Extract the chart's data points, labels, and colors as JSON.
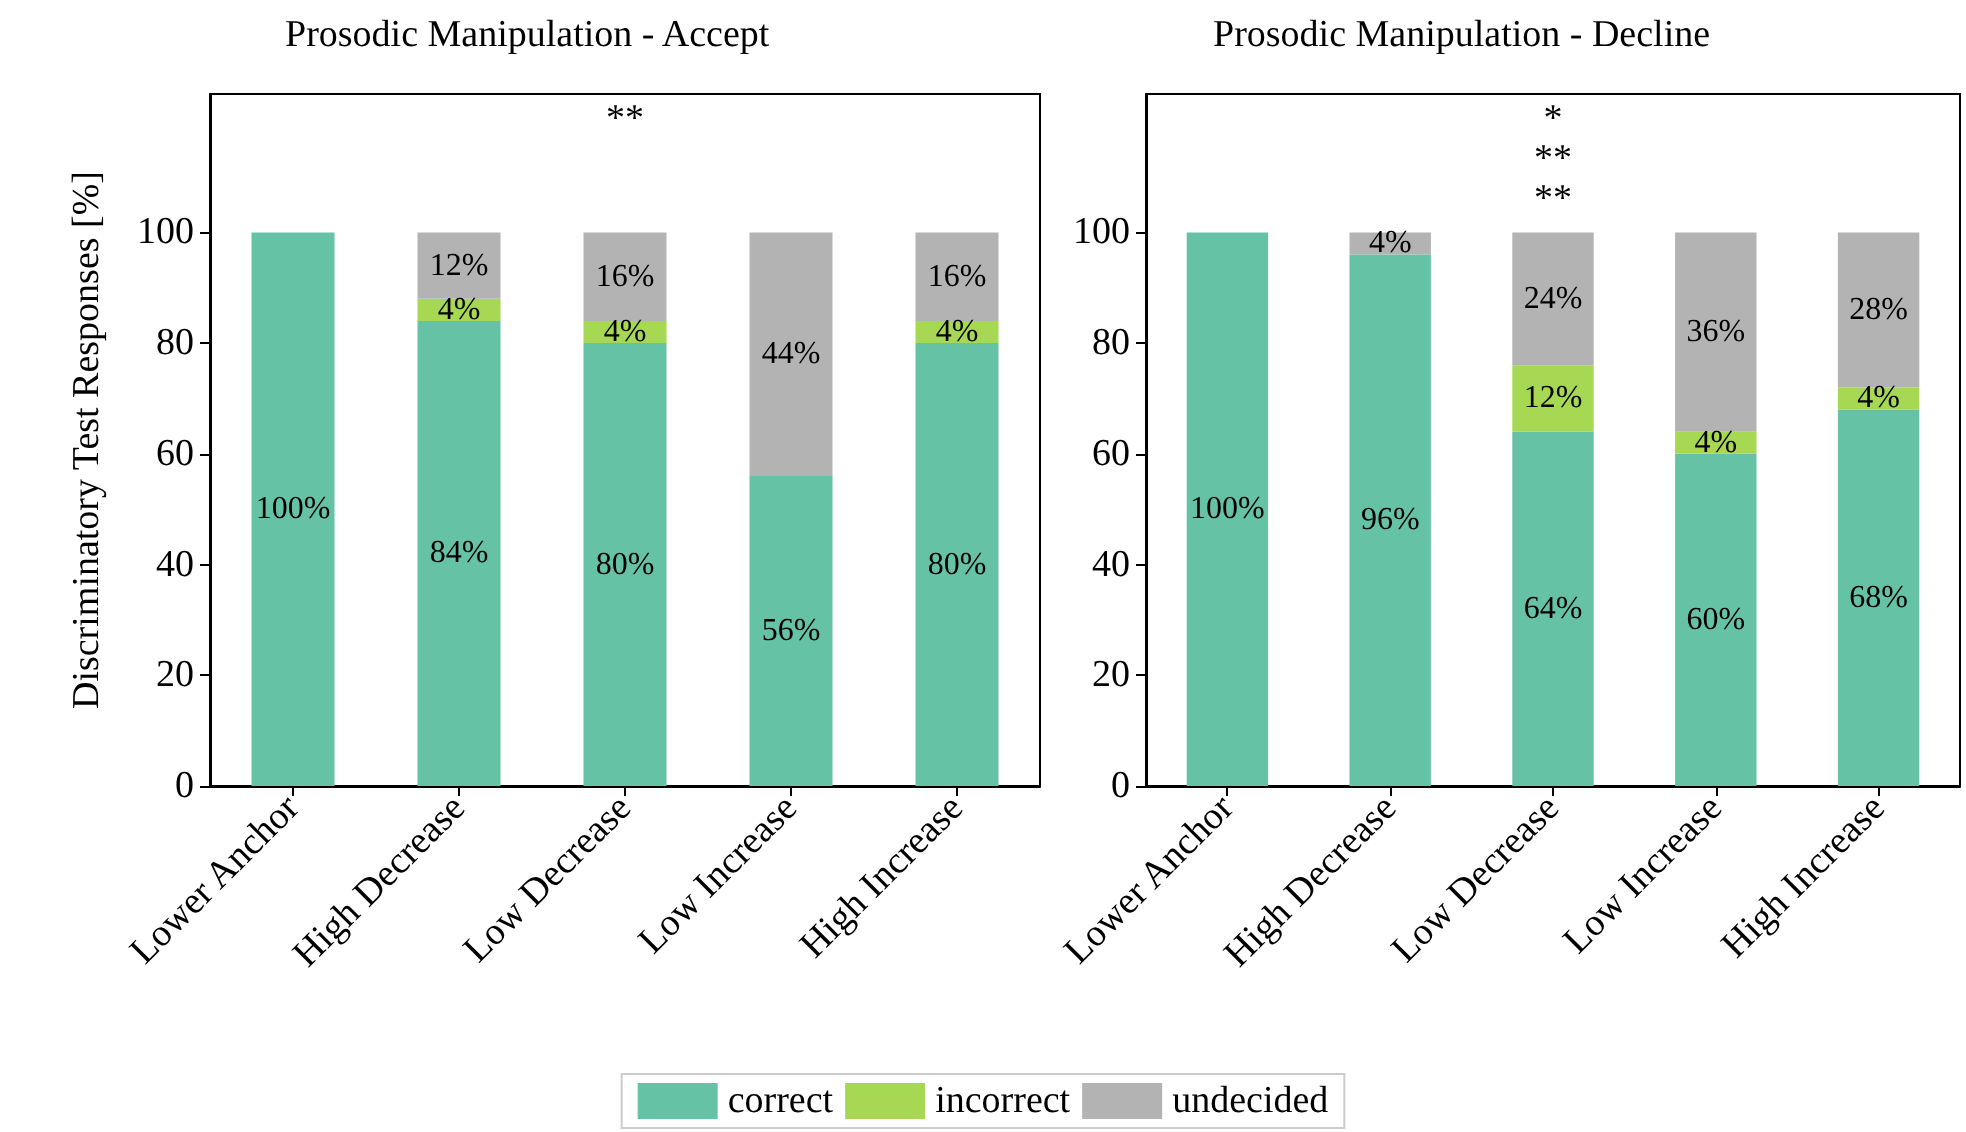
{
  "chart_data": [
    {
      "type": "bar",
      "title": "Prosodic Manipulation - Accept",
      "ylabel": "Discriminatory Test Responses [%]",
      "stacked": true,
      "categories": [
        "Lower Anchor",
        "High Decrease",
        "Low Decrease",
        "Low Increase",
        "High Increase"
      ],
      "series": [
        {
          "color": "#66c2a5",
          "values": [
            100,
            84,
            80,
            56,
            80
          ],
          "value_labels": [
            "100%",
            "84%",
            "80%",
            "56%",
            "80%"
          ]
        },
        {
          "color": "#a6d854",
          "values": [
            0,
            4,
            4,
            0,
            4
          ],
          "value_labels": [
            null,
            "4%",
            "4%",
            null,
            "4%"
          ]
        },
        {
          "color": "#b3b3b3",
          "values": [
            0,
            12,
            16,
            44,
            16
          ],
          "value_labels": [
            null,
            "12%",
            "16%",
            "44%",
            "16%"
          ]
        }
      ],
      "ylim": [
        0,
        125
      ],
      "yticks": [
        0,
        20,
        40,
        60,
        80,
        100
      ],
      "grid": false,
      "legend": false,
      "annotations": [
        "**"
      ]
    },
    {
      "type": "bar",
      "title": "Prosodic Manipulation - Decline",
      "stacked": true,
      "categories": [
        "Lower Anchor",
        "High Decrease",
        "Low Decrease",
        "Low Increase",
        "High Increase"
      ],
      "series": [
        {
          "name": "correct",
          "color": "#66c2a5",
          "values": [
            100,
            96,
            64,
            60,
            68
          ],
          "value_labels": [
            "100%",
            "96%",
            "64%",
            "60%",
            "68%"
          ]
        },
        {
          "name": "incorrect",
          "color": "#a6d854",
          "values": [
            0,
            0,
            12,
            4,
            4
          ],
          "value_labels": [
            null,
            null,
            "12%",
            "4%",
            "4%"
          ]
        },
        {
          "name": "undecided",
          "color": "#b3b3b3",
          "values": [
            0,
            4,
            24,
            36,
            28
          ],
          "value_labels": [
            null,
            "4%",
            "24%",
            "36%",
            "28%"
          ]
        }
      ],
      "ylim": [
        0,
        125
      ],
      "yticks": [
        0,
        20,
        40,
        60,
        80,
        100
      ],
      "grid": false,
      "legend": "bottom",
      "annotations": [
        "*",
        "**",
        "**"
      ]
    }
  ]
}
